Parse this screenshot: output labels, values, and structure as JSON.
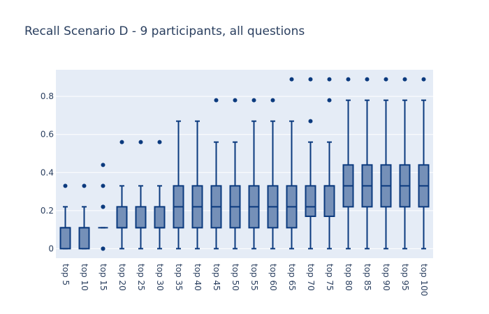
{
  "chart_data": {
    "type": "box",
    "title": "Recall Scenario D - 9 participants, all questions",
    "xlabel": "",
    "ylabel": "",
    "ylim": [
      -0.05,
      0.94
    ],
    "yticks": [
      0,
      0.2,
      0.4,
      0.6,
      0.8
    ],
    "ytick_labels": [
      "0",
      "0.2",
      "0.4",
      "0.6",
      "0.8"
    ],
    "grid": true,
    "legend": "none",
    "colors": {
      "fill": "#7590b8",
      "line": "#0b3a7e",
      "plot_bg": "#e5ecf6",
      "grid": "#ffffff",
      "text": "#2a3f5f"
    },
    "categories": [
      "top 5",
      "top 10",
      "top 15",
      "top 20",
      "top 25",
      "top 30",
      "top 35",
      "top 40",
      "top 45",
      "top 50",
      "top 55",
      "top 60",
      "top 65",
      "top 70",
      "top 75",
      "top 80",
      "top 85",
      "top 90",
      "top 95",
      "top 100"
    ],
    "boxes": [
      {
        "min": 0,
        "q1": 0,
        "median": 0.11,
        "q3": 0.11,
        "max": 0.22,
        "outliers": [
          0.33
        ]
      },
      {
        "min": 0,
        "q1": 0,
        "median": 0.11,
        "q3": 0.11,
        "max": 0.22,
        "outliers": [
          0.33
        ]
      },
      {
        "min": 0.11,
        "q1": 0.11,
        "median": 0.11,
        "q3": 0.11,
        "max": 0.11,
        "outliers": [
          0,
          0,
          0.22,
          0.22,
          0.33,
          0.44
        ]
      },
      {
        "min": 0,
        "q1": 0.11,
        "median": 0.11,
        "q3": 0.22,
        "max": 0.33,
        "outliers": [
          0.56
        ]
      },
      {
        "min": 0,
        "q1": 0.11,
        "median": 0.11,
        "q3": 0.22,
        "max": 0.33,
        "outliers": [
          0.56
        ]
      },
      {
        "min": 0,
        "q1": 0.11,
        "median": 0.11,
        "q3": 0.22,
        "max": 0.33,
        "outliers": [
          0.56
        ]
      },
      {
        "min": 0,
        "q1": 0.11,
        "median": 0.22,
        "q3": 0.33,
        "max": 0.67,
        "outliers": []
      },
      {
        "min": 0,
        "q1": 0.11,
        "median": 0.22,
        "q3": 0.33,
        "max": 0.67,
        "outliers": []
      },
      {
        "min": 0,
        "q1": 0.11,
        "median": 0.22,
        "q3": 0.33,
        "max": 0.56,
        "outliers": [
          0.78
        ]
      },
      {
        "min": 0,
        "q1": 0.11,
        "median": 0.22,
        "q3": 0.33,
        "max": 0.56,
        "outliers": [
          0.78
        ]
      },
      {
        "min": 0,
        "q1": 0.11,
        "median": 0.22,
        "q3": 0.33,
        "max": 0.67,
        "outliers": [
          0.78
        ]
      },
      {
        "min": 0,
        "q1": 0.11,
        "median": 0.22,
        "q3": 0.33,
        "max": 0.67,
        "outliers": [
          0.78
        ]
      },
      {
        "min": 0,
        "q1": 0.11,
        "median": 0.22,
        "q3": 0.33,
        "max": 0.67,
        "outliers": [
          0.89
        ]
      },
      {
        "min": 0,
        "q1": 0.17,
        "median": 0.22,
        "q3": 0.33,
        "max": 0.56,
        "outliers": [
          0.67,
          0.89
        ]
      },
      {
        "min": 0,
        "q1": 0.17,
        "median": 0.33,
        "q3": 0.33,
        "max": 0.56,
        "outliers": [
          0.78,
          0.89
        ]
      },
      {
        "min": 0,
        "q1": 0.22,
        "median": 0.33,
        "q3": 0.44,
        "max": 0.78,
        "outliers": [
          0.89
        ]
      },
      {
        "min": 0,
        "q1": 0.22,
        "median": 0.33,
        "q3": 0.44,
        "max": 0.78,
        "outliers": [
          0.89
        ]
      },
      {
        "min": 0,
        "q1": 0.22,
        "median": 0.33,
        "q3": 0.44,
        "max": 0.78,
        "outliers": [
          0.89
        ]
      },
      {
        "min": 0,
        "q1": 0.22,
        "median": 0.33,
        "q3": 0.44,
        "max": 0.78,
        "outliers": [
          0.89
        ]
      },
      {
        "min": 0,
        "q1": 0.22,
        "median": 0.33,
        "q3": 0.44,
        "max": 0.78,
        "outliers": [
          0.89
        ]
      }
    ]
  }
}
